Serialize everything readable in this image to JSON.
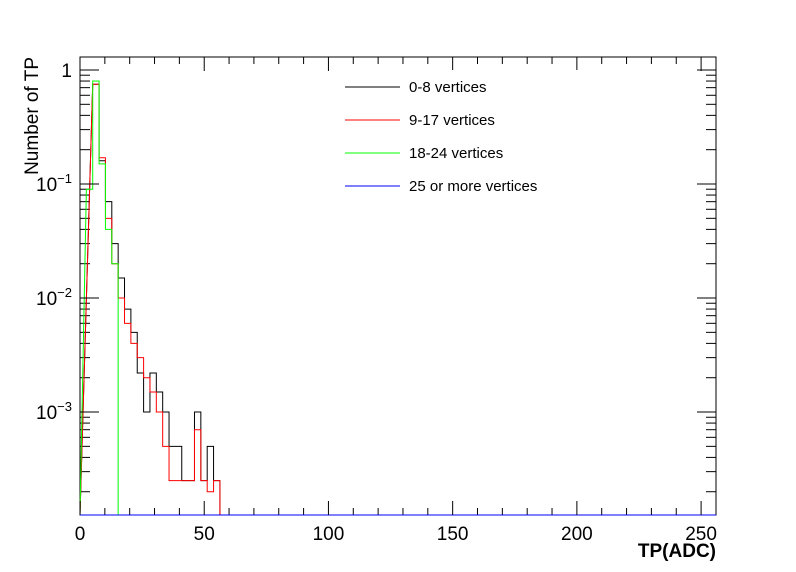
{
  "chart_data": {
    "type": "histogram",
    "xlabel": "TP(ADC)",
    "ylabel": "Number of TP",
    "xlim": [
      0,
      256
    ],
    "ylim": [
      0.000125,
      1.3
    ],
    "y_scale": "log",
    "bin_width": 2.56,
    "x_ticks": [
      {
        "value": 0,
        "label": "0"
      },
      {
        "value": 50,
        "label": "50"
      },
      {
        "value": 100,
        "label": "100"
      },
      {
        "value": 150,
        "label": "150"
      },
      {
        "value": 200,
        "label": "200"
      },
      {
        "value": 250,
        "label": "250"
      }
    ],
    "y_ticks": [
      {
        "value": 1,
        "base": "1",
        "exp": ""
      },
      {
        "value": 0.1,
        "base": "10",
        "exp": "−1"
      },
      {
        "value": 0.01,
        "base": "10",
        "exp": "−2"
      },
      {
        "value": 0.001,
        "base": "10",
        "exp": "−3"
      }
    ],
    "legend_position": "top-right",
    "series": [
      {
        "name": "0-8 vertices",
        "color": "#000000",
        "bins": [
          [
            5.12,
            0.75
          ],
          [
            7.68,
            0.16
          ],
          [
            10.24,
            0.07
          ],
          [
            12.8,
            0.03
          ],
          [
            15.36,
            0.015
          ],
          [
            17.92,
            0.008
          ],
          [
            20.48,
            0.005
          ],
          [
            23.04,
            0.0022
          ],
          [
            25.6,
            0.001
          ],
          [
            28.16,
            0.0022
          ],
          [
            30.72,
            0.0015
          ],
          [
            33.28,
            0.001
          ],
          [
            35.84,
            0.0005
          ],
          [
            38.4,
            0.0005
          ],
          [
            40.96,
            0.00025
          ],
          [
            43.52,
            0.00025
          ],
          [
            46.08,
            0.001
          ],
          [
            48.64,
            0.00025
          ],
          [
            51.2,
            0.0005
          ],
          [
            53.76,
            0.00025
          ]
        ]
      },
      {
        "name": "9-17 vertices",
        "color": "#ff0000",
        "bins": [
          [
            5.12,
            0.75
          ],
          [
            7.68,
            0.17
          ],
          [
            10.24,
            0.05
          ],
          [
            12.8,
            0.02
          ],
          [
            15.36,
            0.01
          ],
          [
            17.92,
            0.006
          ],
          [
            20.48,
            0.004
          ],
          [
            23.04,
            0.003
          ],
          [
            25.6,
            0.002
          ],
          [
            28.16,
            0.0015
          ],
          [
            30.72,
            0.001
          ],
          [
            33.28,
            0.0005
          ],
          [
            35.84,
            0.00025
          ],
          [
            38.4,
            0.00025
          ],
          [
            40.96,
            0.00025
          ],
          [
            43.52,
            0.00025
          ],
          [
            46.08,
            0.0007
          ],
          [
            48.64,
            0.00025
          ],
          [
            51.2,
            0.0002
          ],
          [
            53.76,
            0.00025
          ]
        ]
      },
      {
        "name": "18-24 vertices",
        "color": "#00ff00",
        "bins": [
          [
            2.56,
            0.09
          ],
          [
            5.12,
            0.8
          ],
          [
            7.68,
            0.15
          ],
          [
            10.24,
            0.04
          ],
          [
            12.8,
            0.02
          ],
          [
            15.36,
            0.000125
          ]
        ]
      },
      {
        "name": "25 or more vertices",
        "color": "#0000ff",
        "bins": []
      }
    ]
  }
}
